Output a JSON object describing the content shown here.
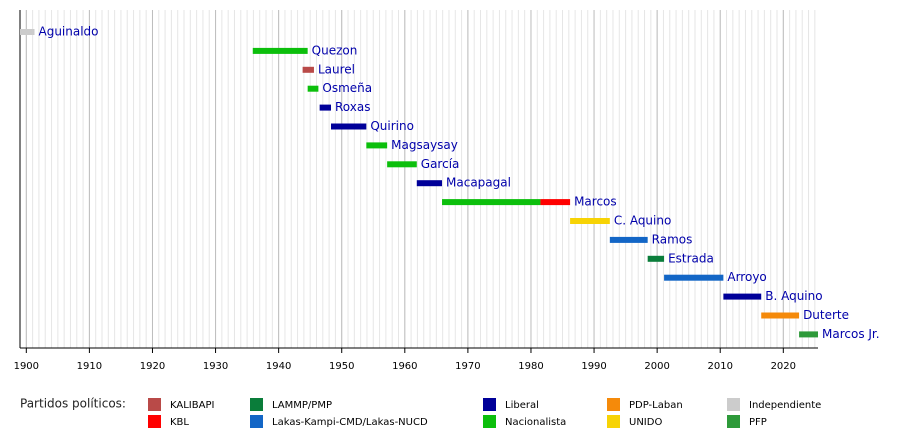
{
  "chart_data": {
    "type": "timeline",
    "xlim": [
      1899,
      2025.5
    ],
    "xticks": [
      1900,
      1910,
      1920,
      1930,
      1940,
      1950,
      1960,
      1970,
      1980,
      1990,
      2000,
      2010,
      2020
    ],
    "minor_xtick_step": 1,
    "grid": true,
    "label_color": "#0000aa",
    "legend_title": "Partidos políticos:",
    "parties": [
      {
        "name": "KALIBAPI",
        "color": "#b94a48"
      },
      {
        "name": "KBL",
        "color": "#ff0000"
      },
      {
        "name": "LAMMP/PMP",
        "color": "#0a7d3a"
      },
      {
        "name": "Lakas-Kampi-CMD/Lakas-NUCD",
        "color": "#1366c6"
      },
      {
        "name": "Liberal",
        "color": "#000099"
      },
      {
        "name": "Nacionalista",
        "color": "#0cbf0c"
      },
      {
        "name": "PDP-Laban",
        "color": "#f58a0a"
      },
      {
        "name": "UNIDO",
        "color": "#f7d305"
      },
      {
        "name": "Independiente",
        "color": "#cccccc"
      },
      {
        "name": "PFP",
        "color": "#2e9a3a"
      }
    ],
    "presidents": [
      {
        "name": "Aguinaldo",
        "segments": [
          {
            "start": 1899,
            "end": 1901.3,
            "party": "Independiente"
          }
        ]
      },
      {
        "name": "Quezon",
        "segments": [
          {
            "start": 1935.9,
            "end": 1944.6,
            "party": "Nacionalista"
          }
        ]
      },
      {
        "name": "Laurel",
        "segments": [
          {
            "start": 1943.8,
            "end": 1945.6,
            "party": "KALIBAPI"
          }
        ]
      },
      {
        "name": "Osmeña",
        "segments": [
          {
            "start": 1944.6,
            "end": 1946.3,
            "party": "Nacionalista"
          }
        ]
      },
      {
        "name": "Roxas",
        "segments": [
          {
            "start": 1946.5,
            "end": 1948.3,
            "party": "Liberal"
          }
        ]
      },
      {
        "name": "Quirino",
        "segments": [
          {
            "start": 1948.3,
            "end": 1953.9,
            "party": "Liberal"
          }
        ]
      },
      {
        "name": "Magsaysay",
        "segments": [
          {
            "start": 1953.9,
            "end": 1957.2,
            "party": "Nacionalista"
          }
        ]
      },
      {
        "name": "García",
        "segments": [
          {
            "start": 1957.2,
            "end": 1961.9,
            "party": "Nacionalista"
          }
        ]
      },
      {
        "name": "Macapagal",
        "segments": [
          {
            "start": 1961.9,
            "end": 1965.9,
            "party": "Liberal"
          }
        ]
      },
      {
        "name": "Marcos",
        "segments": [
          {
            "start": 1965.9,
            "end": 1981.5,
            "party": "Nacionalista"
          },
          {
            "start": 1981.5,
            "end": 1986.2,
            "party": "KBL"
          }
        ]
      },
      {
        "name": "C. Aquino",
        "segments": [
          {
            "start": 1986.2,
            "end": 1992.5,
            "party": "UNIDO"
          }
        ]
      },
      {
        "name": "Ramos",
        "segments": [
          {
            "start": 1992.5,
            "end": 1998.5,
            "party": "Lakas-Kampi-CMD/Lakas-NUCD"
          }
        ]
      },
      {
        "name": "Estrada",
        "segments": [
          {
            "start": 1998.5,
            "end": 2001.1,
            "party": "LAMMP/PMP"
          }
        ]
      },
      {
        "name": "Arroyo",
        "segments": [
          {
            "start": 2001.1,
            "end": 2010.5,
            "party": "Lakas-Kampi-CMD/Lakas-NUCD"
          }
        ]
      },
      {
        "name": "B. Aquino",
        "segments": [
          {
            "start": 2010.5,
            "end": 2016.5,
            "party": "Liberal"
          }
        ]
      },
      {
        "name": "Duterte",
        "segments": [
          {
            "start": 2016.5,
            "end": 2022.5,
            "party": "PDP-Laban"
          }
        ]
      },
      {
        "name": "Marcos Jr.",
        "segments": [
          {
            "start": 2022.5,
            "end": 2025.5,
            "party": "PFP"
          }
        ]
      }
    ]
  }
}
